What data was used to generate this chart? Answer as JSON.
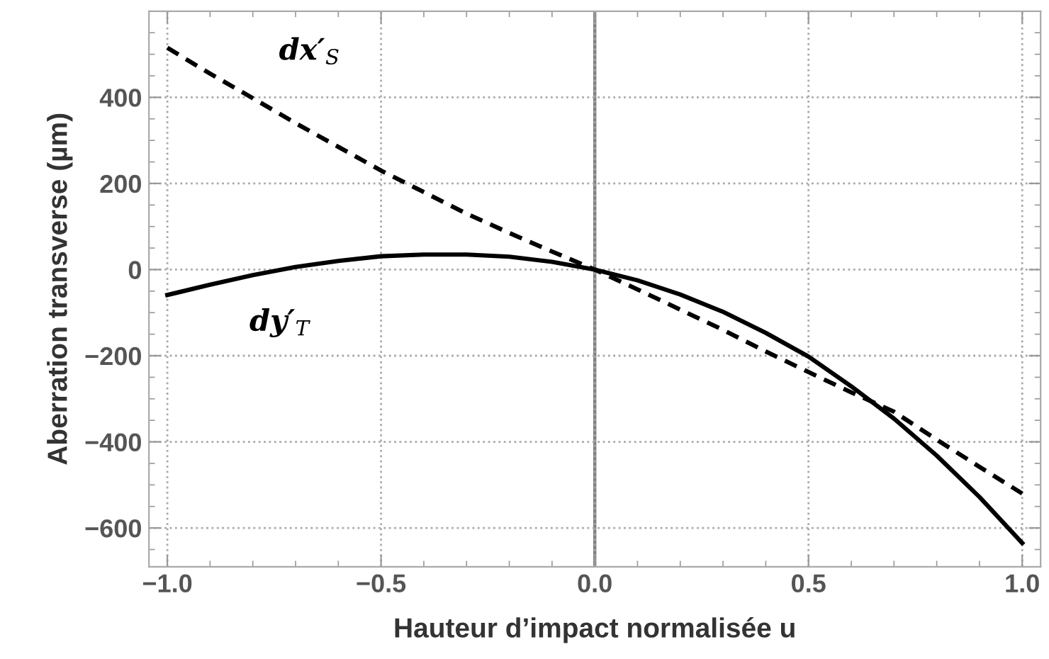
{
  "chart_data": {
    "type": "line",
    "xlabel": "Hauteur d’impact normalisée u",
    "ylabel": "Aberration transverse (µm)",
    "x": [
      -1.0,
      -0.9,
      -0.8,
      -0.7,
      -0.6,
      -0.5,
      -0.4,
      -0.3,
      -0.2,
      -0.1,
      0.0,
      0.1,
      0.2,
      0.3,
      0.4,
      0.5,
      0.6,
      0.7,
      0.8,
      0.9,
      1.0
    ],
    "series": [
      {
        "name": "dx′$_{S}$",
        "color": "#000000",
        "line_style": "dashed",
        "values": [
          515,
          455,
          398,
          340,
          285,
          230,
          180,
          130,
          85,
          42,
          0,
          -46,
          -93,
          -140,
          -190,
          -238,
          -285,
          -330,
          -395,
          -458,
          -520
        ]
      },
      {
        "name": "dy′$_{T}$",
        "color": "#000000",
        "line_style": "solid",
        "values": [
          -59,
          -35,
          -13,
          6,
          20,
          31,
          35,
          35,
          30,
          18,
          0,
          -25,
          -58,
          -98,
          -147,
          -202,
          -271,
          -346,
          -432,
          -528,
          -635
        ]
      }
    ],
    "xlim": [
      -1.043,
      1.043
    ],
    "ylim": [
      -690,
      600
    ],
    "xticks": [
      {
        "value": -1,
        "label": "−1.0"
      },
      {
        "value": -0.5,
        "label": "−0.5"
      },
      {
        "value": 0,
        "label": "0.0"
      },
      {
        "value": 0.5,
        "label": "0.5"
      },
      {
        "value": 1,
        "label": "1.0"
      }
    ],
    "yticks": [
      {
        "value": -600,
        "label": "−600"
      },
      {
        "value": -400,
        "label": "−400"
      },
      {
        "value": -200,
        "label": "−200"
      },
      {
        "value": 0,
        "label": "0"
      },
      {
        "value": 200,
        "label": "200"
      },
      {
        "value": 400,
        "label": "400"
      }
    ],
    "ref_lines": [
      {
        "axis": "x",
        "value": 0,
        "color": "#808080"
      }
    ],
    "grid": true,
    "legend": false,
    "marker": "none"
  }
}
